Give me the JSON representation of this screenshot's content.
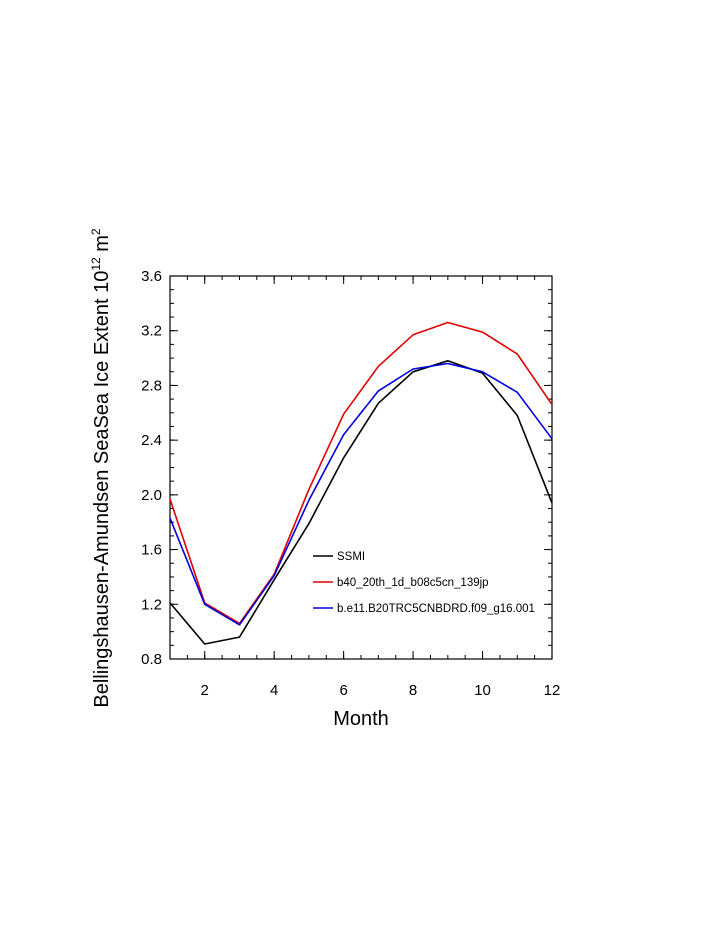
{
  "chart_data": {
    "type": "line",
    "title": "",
    "xlabel": "Month",
    "ylabel": {
      "text": "Bellingshausen-Amundsen SeaSea Ice Extent 10",
      "exp1": "12",
      "unit": " m",
      "exp2": "2"
    },
    "x": [
      1,
      2,
      3,
      4,
      5,
      6,
      7,
      8,
      9,
      10,
      11,
      12
    ],
    "xlim": [
      1,
      12
    ],
    "ylim": [
      0.8,
      3.6
    ],
    "xticks": [
      "2",
      "4",
      "6",
      "8",
      "10",
      "12"
    ],
    "yticks": [
      "0.8",
      "1.2",
      "1.6",
      "2.0",
      "2.4",
      "2.8",
      "3.2",
      "3.6"
    ],
    "grid": false,
    "legend_position": "lower-right",
    "series": [
      {
        "name": "SSMI",
        "color": "#000000",
        "values": [
          1.21,
          0.91,
          0.96,
          1.38,
          1.79,
          2.27,
          2.67,
          2.9,
          2.98,
          2.89,
          2.58,
          1.94
        ]
      },
      {
        "name": "b40_20th_1d_b08c5cn_139jp",
        "color": "#e00000",
        "values": [
          1.97,
          1.21,
          1.06,
          1.42,
          2.04,
          2.59,
          2.94,
          3.17,
          3.26,
          3.19,
          3.03,
          2.66
        ]
      },
      {
        "name": "b.e11.B20TRC5CNBDRD.f09_g16.001",
        "color": "#0000e0",
        "values": [
          1.83,
          1.2,
          1.05,
          1.41,
          1.96,
          2.44,
          2.76,
          2.92,
          2.96,
          2.9,
          2.75,
          2.41
        ]
      }
    ]
  }
}
